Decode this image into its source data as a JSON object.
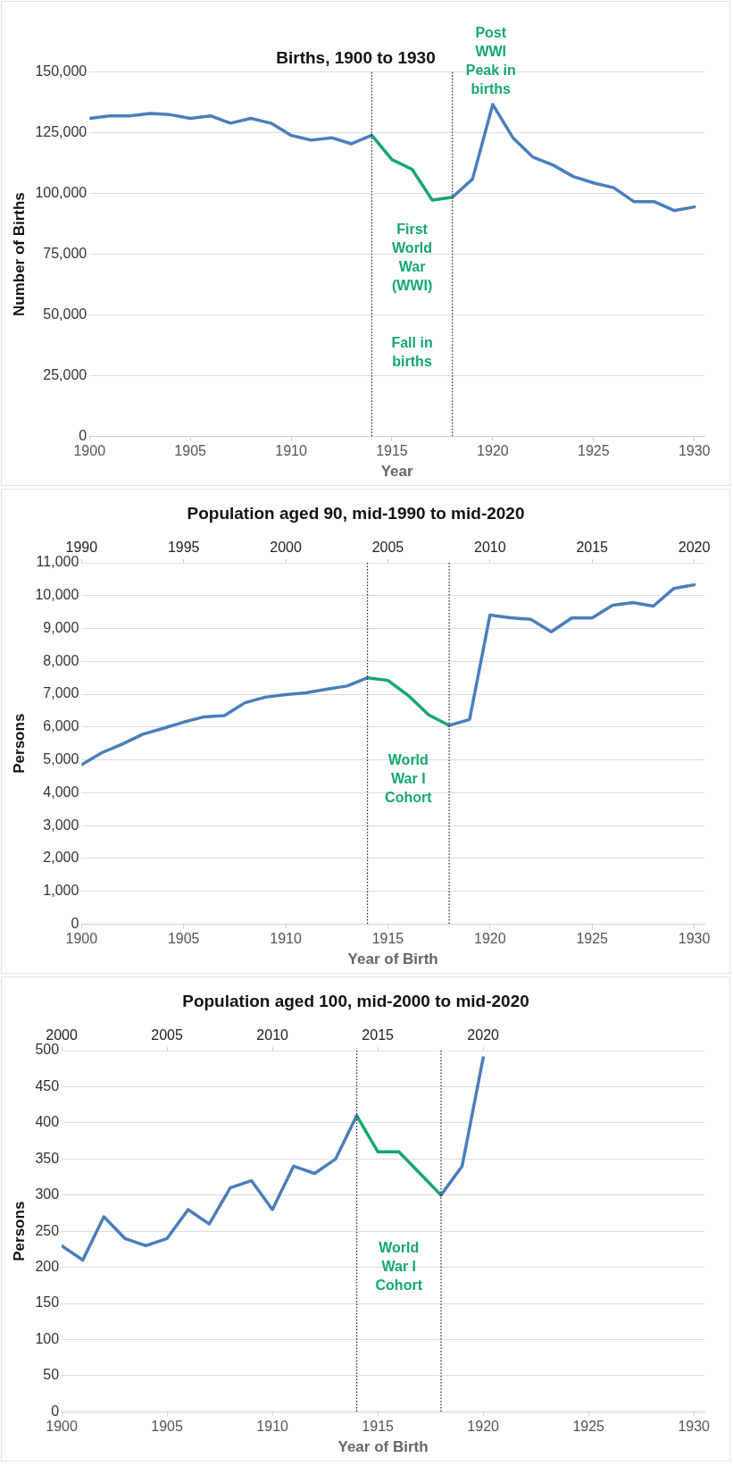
{
  "chart_data": [
    {
      "type": "line",
      "title": "Births, 1900 to 1930",
      "xlabel": "Year",
      "ylabel": "Number of Births",
      "xlim": [
        1900,
        1930.5
      ],
      "xticks": [
        1900,
        1905,
        1910,
        1915,
        1920,
        1925,
        1930
      ],
      "ylim": [
        0,
        150000
      ],
      "yticks": [
        0,
        {
          "value": 25000,
          "label": "25,000"
        },
        {
          "value": 50000,
          "label": "50,000"
        },
        {
          "value": 75000,
          "label": "75,000"
        },
        {
          "value": 100000,
          "label": "100,000"
        },
        {
          "value": 125000,
          "label": "125,000"
        },
        {
          "value": 150000,
          "label": "150,000"
        }
      ],
      "grid": "y",
      "line_style": "solid",
      "series": [
        {
          "color": "#4a7ebb",
          "x": [
            1900,
            1901,
            1902,
            1903,
            1904,
            1905,
            1906,
            1907,
            1908,
            1909,
            1910,
            1911,
            1912,
            1913,
            1914,
            1915,
            1916,
            1917,
            1918,
            1919,
            1920,
            1921,
            1922,
            1923,
            1924,
            1925,
            1926,
            1927,
            1928,
            1929,
            1930
          ],
          "values": [
            131000,
            132000,
            132000,
            133000,
            132500,
            131000,
            132000,
            129000,
            131000,
            129000,
            124000,
            122000,
            123000,
            120500,
            124000,
            null,
            null,
            null,
            98500,
            106000,
            136700,
            123000,
            115000,
            111700,
            107000,
            104400,
            102400,
            96700,
            96700,
            93000,
            94500
          ]
        },
        {
          "color": "#14a86e",
          "x": [
            1914,
            1915,
            1916,
            1917,
            1918
          ],
          "values": [
            124000,
            114000,
            110000,
            97300,
            98500
          ]
        }
      ],
      "ref_lines": [
        {
          "axis": "x",
          "value": 1914,
          "color": "#222222",
          "line_style": "dotted"
        },
        {
          "axis": "x",
          "value": 1918,
          "color": "#222222",
          "line_style": "dotted"
        }
      ],
      "annotations": [
        "First World War (WWI)",
        "Fall in births",
        "Post WWI Peak in births"
      ]
    },
    {
      "type": "line",
      "title": "Population aged 90, mid-1990 to mid-2020",
      "xlabel": "Year of Birth",
      "ylabel": "Persons",
      "xlim": [
        1900,
        1930.5
      ],
      "xticks": [
        1900,
        1905,
        1910,
        1915,
        1920,
        1925,
        1930
      ],
      "x2lim": [
        1990,
        2020.5
      ],
      "x2ticks": [
        1990,
        1995,
        2000,
        2005,
        2010,
        2015,
        2020
      ],
      "ylim": [
        0,
        11000
      ],
      "yticks": [
        0,
        {
          "value": 1000,
          "label": "1,000"
        },
        {
          "value": 2000,
          "label": "2,000"
        },
        {
          "value": 3000,
          "label": "3,000"
        },
        {
          "value": 4000,
          "label": "4,000"
        },
        {
          "value": 5000,
          "label": "5,000"
        },
        {
          "value": 6000,
          "label": "6,000"
        },
        {
          "value": 7000,
          "label": "7,000"
        },
        {
          "value": 8000,
          "label": "8,000"
        },
        {
          "value": 9000,
          "label": "9,000"
        },
        {
          "value": 10000,
          "label": "10,000"
        },
        {
          "value": 11000,
          "label": "11,000"
        }
      ],
      "grid": "y",
      "line_style": "solid",
      "series": [
        {
          "color": "#4a7ebb",
          "x": [
            1900,
            1901,
            1902,
            1903,
            1904,
            1905,
            1906,
            1907,
            1908,
            1909,
            1910,
            1911,
            1912,
            1913,
            1914,
            1915,
            1916,
            1917,
            1918,
            1919,
            1920,
            1921,
            1922,
            1923,
            1924,
            1925,
            1926,
            1927,
            1928,
            1929,
            1930
          ],
          "values": [
            4850,
            5220,
            5480,
            5780,
            5960,
            6150,
            6310,
            6350,
            6740,
            6910,
            6990,
            7040,
            7150,
            7250,
            7500,
            null,
            null,
            null,
            6050,
            6230,
            9410,
            9330,
            9280,
            8900,
            9320,
            9320,
            9710,
            9790,
            9680,
            10220,
            10330
          ]
        },
        {
          "color": "#14a86e",
          "x": [
            1914,
            1915,
            1916,
            1917,
            1918
          ],
          "values": [
            7500,
            7420,
            6960,
            6370,
            6050
          ]
        }
      ],
      "ref_lines": [
        {
          "axis": "x",
          "value": 1914,
          "color": "#222222",
          "line_style": "dotted"
        },
        {
          "axis": "x",
          "value": 1918,
          "color": "#222222",
          "line_style": "dotted"
        }
      ],
      "annotations": [
        "World War I Cohort"
      ]
    },
    {
      "type": "line",
      "title": "Population aged 100, mid-2000 to mid-2020",
      "xlabel": "Year of Birth",
      "ylabel": "Persons",
      "xlim": [
        1900,
        1930.5
      ],
      "xticks": [
        1900,
        1905,
        1910,
        1915,
        1920,
        1925,
        1930
      ],
      "x2lim": [
        2000,
        2030.5
      ],
      "x2ticks": [
        2000,
        2005,
        2010,
        2015,
        2020
      ],
      "ylim": [
        0,
        500
      ],
      "yticks": [
        0,
        50,
        100,
        150,
        200,
        250,
        300,
        350,
        400,
        450,
        500
      ],
      "grid": "y",
      "line_style": "solid",
      "series": [
        {
          "color": "#4a7ebb",
          "x": [
            1900,
            1901,
            1902,
            1903,
            1904,
            1905,
            1906,
            1907,
            1908,
            1909,
            1910,
            1911,
            1912,
            1913,
            1914,
            1915,
            1916,
            1917,
            1918,
            1919,
            1920
          ],
          "values": [
            230,
            210,
            270,
            240,
            230,
            240,
            280,
            260,
            310,
            320,
            280,
            340,
            330,
            350,
            410,
            null,
            null,
            null,
            300,
            340,
            490
          ]
        },
        {
          "color": "#14a86e",
          "x": [
            1914,
            1915,
            1916,
            1917,
            1918
          ],
          "values": [
            410,
            360,
            360,
            330,
            300
          ]
        }
      ],
      "ref_lines": [
        {
          "axis": "x",
          "value": 1914,
          "color": "#222222",
          "line_style": "dotted"
        },
        {
          "axis": "x",
          "value": 1918,
          "color": "#222222",
          "line_style": "dotted"
        }
      ],
      "annotations": [
        "World War I Cohort"
      ]
    }
  ]
}
